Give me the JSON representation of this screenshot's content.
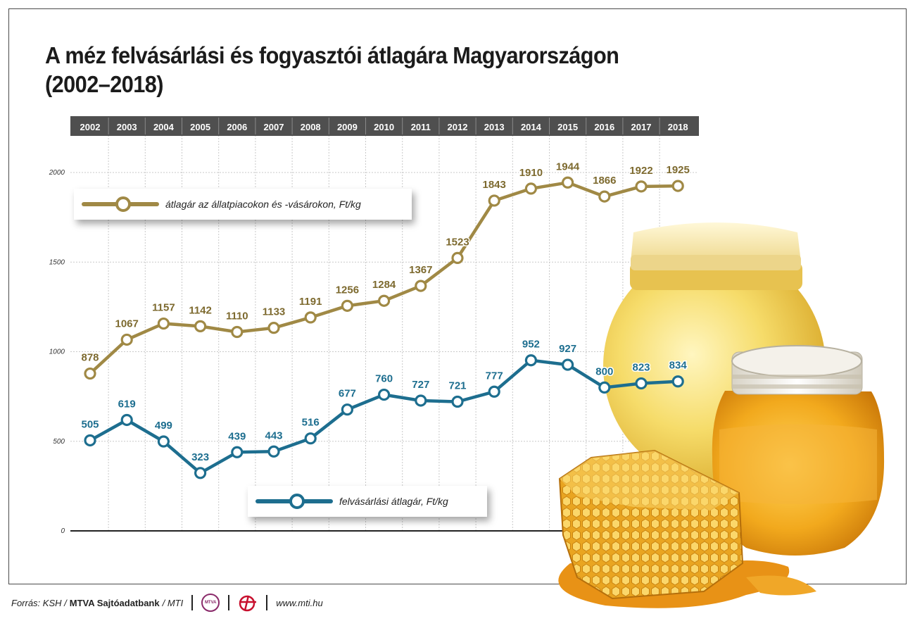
{
  "title_line1": "A méz felvásárlási és fogyasztói átlagára Magyarországon",
  "title_line2": "(2002–2018)",
  "chart_data": {
    "type": "line",
    "categories": [
      "2002",
      "2003",
      "2004",
      "2005",
      "2006",
      "2007",
      "2008",
      "2009",
      "2010",
      "2011",
      "2012",
      "2013",
      "2014",
      "2015",
      "2016",
      "2017",
      "2018"
    ],
    "y_ticks": [
      0,
      500,
      1000,
      1500,
      2000
    ],
    "ylim": [
      0,
      2000
    ],
    "series": [
      {
        "name": "átlagár az állatpiacokon és -vásárokon, Ft/kg",
        "color": "#a08945",
        "label_color": "#7d6a2f",
        "legend_position": "top-left",
        "values": [
          878,
          1067,
          1157,
          1142,
          1110,
          1133,
          1191,
          1256,
          1284,
          1367,
          1523,
          1843,
          1910,
          1944,
          1866,
          1922,
          1925
        ]
      },
      {
        "name": "felvásárlási átlagár, Ft/kg",
        "color": "#1d6e8f",
        "label_color": "#1d6e8f",
        "legend_position": "bottom-center",
        "values": [
          505,
          619,
          499,
          323,
          439,
          443,
          516,
          677,
          760,
          727,
          721,
          777,
          952,
          927,
          800,
          823,
          834
        ]
      }
    ]
  },
  "footer": {
    "source_prefix": "Forrás: KSH /",
    "org": "MTVA Sajtóadatbank",
    "suffix": "/ MTI",
    "logo_mtva": "MTVA",
    "url": "www.mti.hu"
  },
  "icons": [
    "honey-jar-icon",
    "honeycomb-icon",
    "mtva-logo-icon",
    "mti-logo-icon"
  ]
}
